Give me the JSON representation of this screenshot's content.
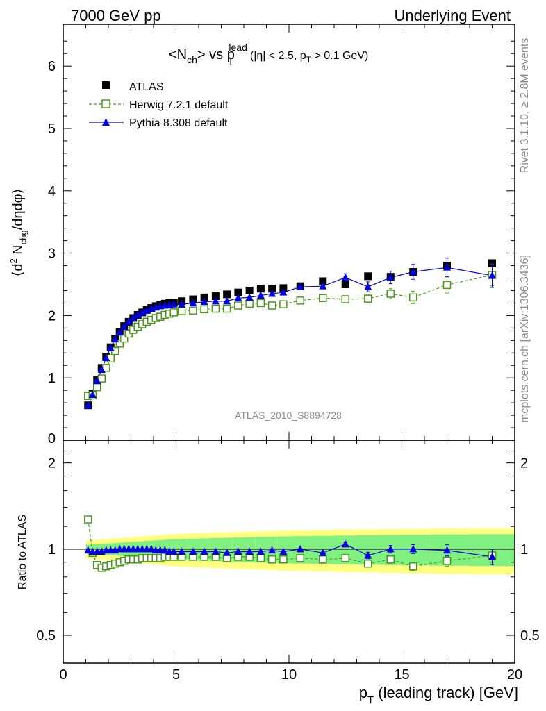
{
  "header": {
    "left": "7000 GeV pp",
    "right": "Underlying Event"
  },
  "side": {
    "rivet": "Rivet 3.1.10, ≥ 2.8M events",
    "mcplots": "mcplots.cern.ch [arXiv:1306.3436]"
  },
  "watermark": "ATLAS_2010_S8894728",
  "title": {
    "lhs": "<N",
    "lhs_sub": "ch",
    "mid": "> vs p",
    "mid_sub": "T",
    "mid_sup": "lead",
    "cuts_a": "(|η| < 2.5, p",
    "cuts_sub": "T",
    "cuts_b": " > 0.1 GeV)"
  },
  "legend": [
    "ATLAS",
    "Herwig 7.2.1 default",
    "Pythia 8.308 default"
  ],
  "colors": {
    "atlas": "#000000",
    "herwig": "#4a9a1a",
    "pythia": "#0000e0",
    "band_yellow": "#ffff80",
    "band_green": "#80f080"
  },
  "chart_data": [
    {
      "type": "scatter",
      "panel": "main",
      "ylabel_parts": [
        "⟨d",
        "2",
        " N",
        "chg",
        "/dηdφ⟩"
      ],
      "xlim": [
        0,
        20
      ],
      "ylim": [
        0,
        6.67
      ],
      "yticks": [
        0,
        1,
        2,
        3,
        4,
        5,
        6
      ],
      "series": [
        {
          "name": "ATLAS",
          "x": [
            1.1,
            1.3,
            1.5,
            1.7,
            1.9,
            2.1,
            2.3,
            2.5,
            2.7,
            2.9,
            3.1,
            3.3,
            3.5,
            3.7,
            3.9,
            4.1,
            4.3,
            4.5,
            4.7,
            4.9,
            5.25,
            5.75,
            6.25,
            6.75,
            7.25,
            7.75,
            8.25,
            8.75,
            9.25,
            9.75,
            10.5,
            11.5,
            12.5,
            13.5,
            14.5,
            15.5,
            17.0,
            19.0
          ],
          "y": [
            0.56,
            0.75,
            0.97,
            1.16,
            1.34,
            1.49,
            1.63,
            1.74,
            1.83,
            1.9,
            1.96,
            2.01,
            2.05,
            2.09,
            2.12,
            2.15,
            2.17,
            2.19,
            2.2,
            2.21,
            2.23,
            2.26,
            2.29,
            2.31,
            2.34,
            2.37,
            2.4,
            2.43,
            2.43,
            2.44,
            2.47,
            2.55,
            2.5,
            2.63,
            2.62,
            2.7,
            2.8,
            2.84
          ]
        },
        {
          "name": "Herwig 7.2.1 default",
          "x": [
            1.1,
            1.3,
            1.5,
            1.7,
            1.9,
            2.1,
            2.3,
            2.5,
            2.7,
            2.9,
            3.1,
            3.3,
            3.5,
            3.7,
            3.9,
            4.1,
            4.3,
            4.5,
            4.7,
            4.9,
            5.25,
            5.75,
            6.25,
            6.75,
            7.25,
            7.75,
            8.25,
            8.75,
            9.25,
            9.75,
            10.5,
            11.5,
            12.5,
            13.5,
            14.5,
            15.5,
            17.0,
            19.0
          ],
          "y": [
            0.71,
            0.72,
            0.85,
            0.99,
            1.16,
            1.31,
            1.43,
            1.55,
            1.63,
            1.71,
            1.77,
            1.82,
            1.86,
            1.9,
            1.93,
            1.96,
            1.98,
            2.01,
            2.03,
            2.05,
            2.07,
            2.08,
            2.1,
            2.11,
            2.11,
            2.16,
            2.19,
            2.2,
            2.16,
            2.18,
            2.24,
            2.28,
            2.26,
            2.27,
            2.35,
            2.29,
            2.49,
            2.65
          ]
        },
        {
          "name": "Pythia 8.308 default",
          "x": [
            1.1,
            1.3,
            1.5,
            1.7,
            1.9,
            2.1,
            2.3,
            2.5,
            2.7,
            2.9,
            3.1,
            3.3,
            3.5,
            3.7,
            3.9,
            4.1,
            4.3,
            4.5,
            4.7,
            4.9,
            5.25,
            5.75,
            6.25,
            6.75,
            7.25,
            7.75,
            8.25,
            8.75,
            9.25,
            9.75,
            10.5,
            11.5,
            12.5,
            13.5,
            14.5,
            15.5,
            17.0,
            19.0
          ],
          "y": [
            0.56,
            0.73,
            0.95,
            1.13,
            1.32,
            1.48,
            1.62,
            1.73,
            1.82,
            1.9,
            1.96,
            2.01,
            2.05,
            2.08,
            2.11,
            2.13,
            2.15,
            2.16,
            2.17,
            2.18,
            2.18,
            2.2,
            2.22,
            2.23,
            2.23,
            2.28,
            2.29,
            2.32,
            2.35,
            2.37,
            2.46,
            2.47,
            2.61,
            2.46,
            2.61,
            2.7,
            2.77,
            2.64
          ]
        }
      ]
    },
    {
      "type": "scatter",
      "panel": "ratio",
      "xlabel_parts": [
        "p",
        "T",
        " (leading track) [GeV]"
      ],
      "ylabel": "Ratio to ATLAS",
      "xlim": [
        0,
        20
      ],
      "xticks": [
        0,
        5,
        10,
        15,
        20
      ],
      "ylim": [
        0.4,
        2.4
      ],
      "yscale": "log",
      "yticks": [
        0.5,
        1,
        2
      ],
      "series": [
        {
          "name": "Herwig 7.2.1 default",
          "x": [
            1.1,
            1.3,
            1.5,
            1.7,
            1.9,
            2.1,
            2.3,
            2.5,
            2.7,
            2.9,
            3.1,
            3.3,
            3.5,
            3.7,
            3.9,
            4.1,
            4.3,
            4.5,
            4.7,
            4.9,
            5.25,
            5.75,
            6.25,
            6.75,
            7.25,
            7.75,
            8.25,
            8.75,
            9.25,
            9.75,
            10.5,
            11.5,
            12.5,
            13.5,
            14.5,
            15.5,
            17.0,
            19.0
          ],
          "y": [
            1.27,
            0.97,
            0.88,
            0.86,
            0.87,
            0.88,
            0.89,
            0.9,
            0.91,
            0.92,
            0.92,
            0.92,
            0.93,
            0.93,
            0.93,
            0.93,
            0.93,
            0.94,
            0.94,
            0.94,
            0.94,
            0.94,
            0.94,
            0.94,
            0.93,
            0.94,
            0.94,
            0.93,
            0.92,
            0.92,
            0.93,
            0.92,
            0.93,
            0.89,
            0.92,
            0.87,
            0.91,
            0.95
          ]
        },
        {
          "name": "Pythia 8.308 default",
          "x": [
            1.1,
            1.3,
            1.5,
            1.7,
            1.9,
            2.1,
            2.3,
            2.5,
            2.7,
            2.9,
            3.1,
            3.3,
            3.5,
            3.7,
            3.9,
            4.1,
            4.3,
            4.5,
            4.7,
            4.9,
            5.25,
            5.75,
            6.25,
            6.75,
            7.25,
            7.75,
            8.25,
            8.75,
            9.25,
            9.75,
            10.5,
            11.5,
            12.5,
            13.5,
            14.5,
            15.5,
            17.0,
            19.0
          ],
          "y": [
            0.99,
            0.98,
            0.98,
            0.98,
            0.99,
            0.99,
            0.99,
            1.0,
            1.0,
            1.0,
            1.0,
            1.0,
            1.0,
            1.0,
            1.0,
            0.99,
            0.99,
            0.99,
            0.98,
            0.98,
            0.98,
            0.98,
            0.98,
            0.98,
            0.97,
            0.98,
            0.98,
            0.98,
            0.99,
            0.98,
            1.0,
            0.97,
            1.04,
            0.95,
            1.0,
            1.0,
            0.99,
            0.94
          ]
        }
      ]
    }
  ]
}
